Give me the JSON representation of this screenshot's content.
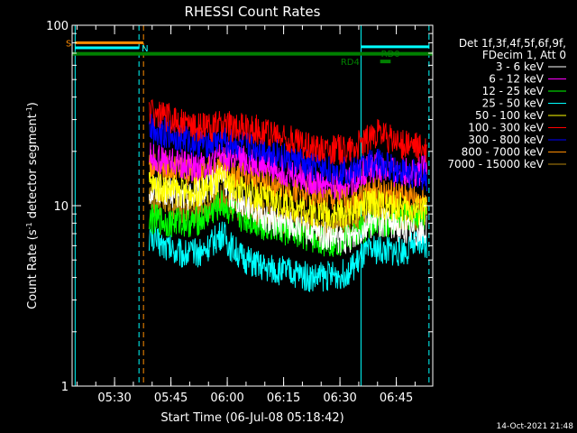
{
  "chart_data": {
    "type": "line",
    "title": "RHESSI Count Rates",
    "xlabel": "Start Time (06-Jul-08 05:18:42)",
    "ylabel_main": "Count Rate (s",
    "ylabel_sup1": "-1",
    "ylabel_mid": " detector segment",
    "ylabel_sup2": "-1",
    "ylabel_end": ")",
    "y_scale": "log",
    "ylim": [
      1,
      100
    ],
    "xlim_minutes": [
      0,
      96
    ],
    "x_ticks": [
      {
        "label": "05:30",
        "minute": 11.3
      },
      {
        "label": "05:45",
        "minute": 26.3
      },
      {
        "label": "06:00",
        "minute": 41.3
      },
      {
        "label": "06:15",
        "minute": 56.3
      },
      {
        "label": "06:30",
        "minute": 71.3
      },
      {
        "label": "06:45",
        "minute": 86.3
      }
    ],
    "y_ticks": [
      {
        "label": "1",
        "value": 1
      },
      {
        "label": "10",
        "value": 10
      },
      {
        "label": "100",
        "value": 100
      }
    ],
    "legend_header": [
      "Det 1f,3f,4f,5f,6f,9f,",
      "FDecim 1, Att 0"
    ],
    "legend_position": "right",
    "series": [
      {
        "name": "3 - 6 keV",
        "color": "#ffffff",
        "x": [
          20.5,
          23,
          26,
          29,
          32,
          35,
          38,
          40,
          42,
          45,
          48,
          51,
          54,
          57,
          60,
          63,
          66,
          69,
          72,
          75,
          78,
          81,
          84,
          87,
          90,
          93,
          94.5
        ],
        "values": [
          12,
          12.5,
          11.8,
          11.2,
          11.5,
          11.8,
          13.5,
          14.5,
          11.6,
          10.6,
          9.8,
          8.6,
          8.2,
          8.0,
          7.6,
          7.2,
          6.8,
          6.6,
          6.4,
          6.8,
          7.8,
          8.2,
          8.0,
          7.6,
          7.4,
          7.2,
          7.4
        ]
      },
      {
        "name": "6 - 12 keV",
        "color": "#ff00ff",
        "x": [
          20.5,
          23,
          26,
          29,
          32,
          35,
          38,
          40,
          42,
          45,
          48,
          51,
          54,
          57,
          60,
          63,
          66,
          69,
          72,
          75,
          78,
          81,
          84,
          87,
          90,
          93,
          94.5
        ],
        "values": [
          19,
          18,
          17.5,
          17,
          16.5,
          16.8,
          18,
          19,
          18.6,
          17.8,
          17.5,
          16.8,
          16.2,
          15.4,
          14.6,
          14.0,
          13.5,
          13.2,
          13.0,
          14.0,
          15.8,
          16.2,
          15.6,
          15.2,
          15.4,
          15.6,
          16
        ]
      },
      {
        "name": "12 - 25 keV",
        "color": "#00ff00",
        "x": [
          20.5,
          23,
          26,
          29,
          32,
          35,
          38,
          40,
          42,
          45,
          48,
          51,
          54,
          57,
          60,
          63,
          66,
          69,
          72,
          75,
          78,
          81,
          84,
          87,
          90,
          93,
          94.5
        ],
        "values": [
          8.5,
          8.3,
          8.0,
          8.2,
          8.0,
          8.5,
          9.5,
          10.2,
          9.2,
          8.6,
          8.2,
          7.8,
          7.5,
          7.2,
          6.9,
          6.6,
          6.4,
          6.3,
          6.4,
          6.8,
          7.6,
          8.2,
          8.0,
          8.4,
          8.6,
          8.8,
          8.6
        ]
      },
      {
        "name": "25 - 50 keV",
        "color": "#00ffff",
        "x": [
          20.5,
          23,
          26,
          29,
          32,
          35,
          38,
          40,
          42,
          45,
          48,
          51,
          54,
          57,
          60,
          63,
          66,
          69,
          72,
          75,
          78,
          81,
          84,
          87,
          90,
          93,
          94.5
        ],
        "values": [
          6.8,
          6.3,
          5.8,
          5.5,
          5.4,
          5.6,
          6.4,
          7.0,
          6.0,
          5.2,
          4.8,
          4.5,
          4.4,
          4.3,
          4.2,
          4.0,
          4.0,
          4.1,
          4.2,
          4.6,
          5.4,
          5.7,
          5.6,
          5.6,
          5.8,
          6.2,
          6.2
        ]
      },
      {
        "name": "50 - 100 keV",
        "color": "#ffff00",
        "x": [
          20.5,
          23,
          26,
          29,
          32,
          35,
          38,
          40,
          42,
          45,
          48,
          51,
          54,
          57,
          60,
          63,
          66,
          69,
          72,
          75,
          78,
          81,
          84,
          87,
          90,
          93,
          94.5
        ],
        "values": [
          13.2,
          12.8,
          12.4,
          12.0,
          11.8,
          12.2,
          13.2,
          14.0,
          13.0,
          12.2,
          11.6,
          11.0,
          10.6,
          10.2,
          9.8,
          9.4,
          9.1,
          9.0,
          9.0,
          9.4,
          10.2,
          10.4,
          10.0,
          9.8,
          9.6,
          9.4,
          9.4
        ]
      },
      {
        "name": "100 - 300 keV",
        "color": "#ff0000",
        "x": [
          20.5,
          23,
          26,
          29,
          32,
          35,
          38,
          40,
          42,
          45,
          48,
          51,
          54,
          57,
          60,
          63,
          66,
          69,
          72,
          75,
          78,
          81,
          84,
          87,
          90,
          93,
          94.5
        ],
        "values": [
          34,
          32,
          30.5,
          29,
          27.5,
          27,
          27.5,
          28,
          27.5,
          27,
          26.5,
          26,
          24.5,
          23.5,
          22.5,
          21.5,
          21.0,
          20.5,
          20.5,
          21,
          22.5,
          25.5,
          23.5,
          22,
          21.5,
          20.5,
          20
        ]
      },
      {
        "name": "300 - 800 keV",
        "color": "#0000ff",
        "x": [
          20.5,
          23,
          26,
          29,
          32,
          35,
          38,
          40,
          42,
          45,
          48,
          51,
          54,
          57,
          60,
          63,
          66,
          69,
          72,
          75,
          78,
          81,
          84,
          87,
          90,
          93,
          94.5
        ],
        "values": [
          27,
          26,
          25,
          23.5,
          22.5,
          22,
          22.5,
          23,
          22,
          21.5,
          21,
          20.5,
          19.5,
          18.5,
          17.5,
          16.8,
          16.2,
          15.8,
          15.6,
          15.8,
          16.6,
          17.5,
          16.6,
          15.6,
          15.0,
          14.6,
          14.2
        ]
      },
      {
        "name": "800 - 7000 keV",
        "color": "#ff8c00",
        "x": [
          20.5,
          23,
          26,
          29,
          32,
          35,
          38,
          40,
          42,
          45,
          48,
          51,
          54,
          57,
          60,
          63,
          66,
          69,
          72,
          75,
          78,
          81,
          84,
          87,
          90,
          93,
          94.5
        ],
        "values": [
          17,
          16.5,
          16,
          15.5,
          15,
          15.2,
          16,
          16.5,
          15.6,
          14.8,
          14.2,
          13.6,
          13.0,
          12.4,
          11.8,
          11.3,
          11.0,
          10.8,
          10.7,
          11.0,
          11.8,
          12.0,
          11.6,
          11.2,
          11.0,
          10.8,
          10.8
        ]
      },
      {
        "name": "7000 - 15000 keV",
        "color": "#b8860b",
        "x": [
          20.5,
          23,
          26,
          29,
          32,
          35,
          38,
          40,
          42,
          45,
          48,
          51,
          54,
          57,
          60,
          63,
          66,
          69,
          72,
          75,
          78,
          81,
          84,
          87,
          90,
          93,
          94.5
        ],
        "values": [
          10.8,
          10.4,
          10.0,
          9.8,
          9.6,
          9.9,
          10.6,
          11.2,
          10.4,
          9.8,
          9.4,
          9.0,
          8.7,
          8.4,
          8.1,
          7.8,
          7.6,
          7.5,
          7.5,
          7.8,
          8.6,
          8.8,
          8.6,
          8.5,
          8.6,
          8.8,
          8.8
        ]
      }
    ],
    "vlines": [
      {
        "minute": 0.8,
        "color": "#00ffff",
        "style": "solid"
      },
      {
        "minute": 17.8,
        "color": "#00ffff",
        "style": "dashed"
      },
      {
        "minute": 19.0,
        "color": "#ff8c00",
        "style": "dashed"
      },
      {
        "minute": 76.9,
        "color": "#00ffff",
        "style": "solid"
      },
      {
        "minute": 95.0,
        "color": "#00ffff",
        "style": "dashed"
      }
    ],
    "flag_bars": [
      {
        "label": "S",
        "color": "#ff8c00",
        "x0": 0.8,
        "x1": 19.0,
        "y": 80,
        "label_side": "left",
        "width": 3
      },
      {
        "label": "N",
        "color": "#00ffff",
        "x0": 0.8,
        "x1": 17.8,
        "y": 75,
        "label_side": "right",
        "width": 3
      },
      {
        "label": "",
        "color": "#00ffff",
        "x0": 77.0,
        "x1": 95.0,
        "y": 76,
        "label_side": "none",
        "width": 3
      },
      {
        "label": "",
        "color": "#008000",
        "x0": 0,
        "x1": 96,
        "y": 69.5,
        "label_side": "none",
        "width": 4
      },
      {
        "label": "RD0",
        "color": "#008000",
        "x0": 82.0,
        "x1": 84.8,
        "y": 63.0,
        "label_side": "above-right",
        "width": 4
      },
      {
        "label": "RD4",
        "color": "#008000",
        "x0": 0,
        "x1": 0,
        "y": 63.0,
        "label_side": "text-only",
        "text_minute": 74.0,
        "width": 0
      }
    ],
    "timestamp": "14-Oct-2021 21:48"
  }
}
